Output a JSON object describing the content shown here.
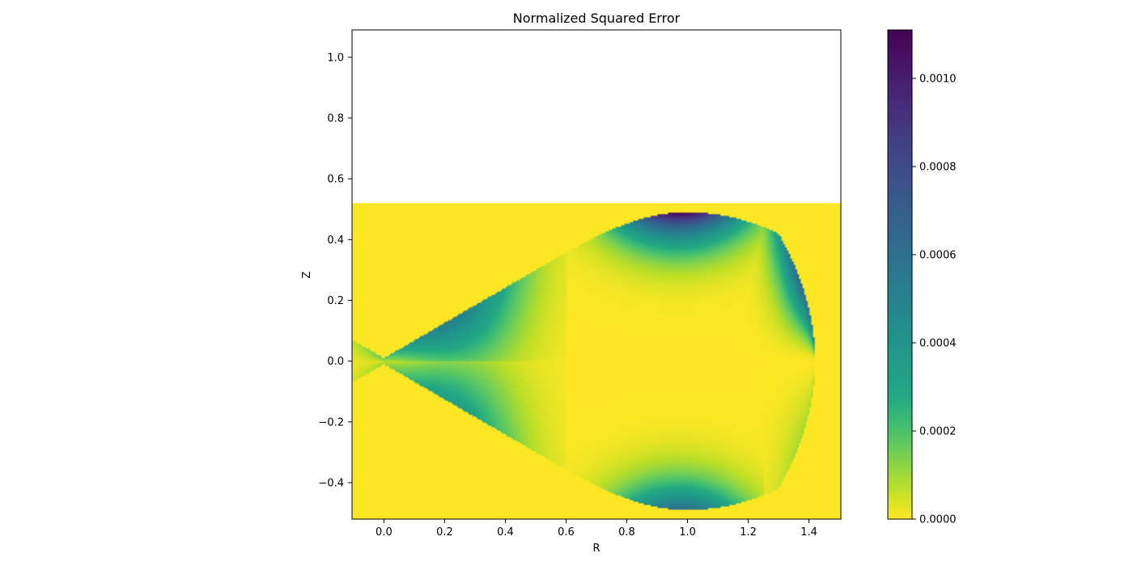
{
  "chart_data": {
    "type": "heatmap",
    "title": "Normalized Squared Error",
    "xlabel": "R",
    "ylabel": "Z",
    "xlim": [
      -0.105,
      1.505
    ],
    "ylim": [
      -0.52,
      1.09
    ],
    "data_extent_z": [
      -0.52,
      0.52
    ],
    "xticks": [
      0.0,
      0.2,
      0.4,
      0.6,
      0.8,
      1.0,
      1.2,
      1.4
    ],
    "xtick_labels": [
      "0.0",
      "0.2",
      "0.4",
      "0.6",
      "0.8",
      "1.0",
      "1.2",
      "1.4"
    ],
    "yticks": [
      -0.4,
      -0.2,
      0.0,
      0.2,
      0.4,
      0.6,
      0.8,
      1.0
    ],
    "ytick_labels": [
      "−0.4",
      "−0.2",
      "0.0",
      "0.2",
      "0.4",
      "0.6",
      "0.8",
      "1.0"
    ],
    "colormap": "viridis_r",
    "colorbar": {
      "min": 0.0,
      "max": 0.00111,
      "ticks": [
        0.0,
        0.0002,
        0.0004,
        0.0006,
        0.0008,
        0.001
      ],
      "tick_labels": [
        "0.0000",
        "0.0002",
        "0.0004",
        "0.0006",
        "0.0008",
        "0.0010"
      ]
    },
    "grid": false
  }
}
